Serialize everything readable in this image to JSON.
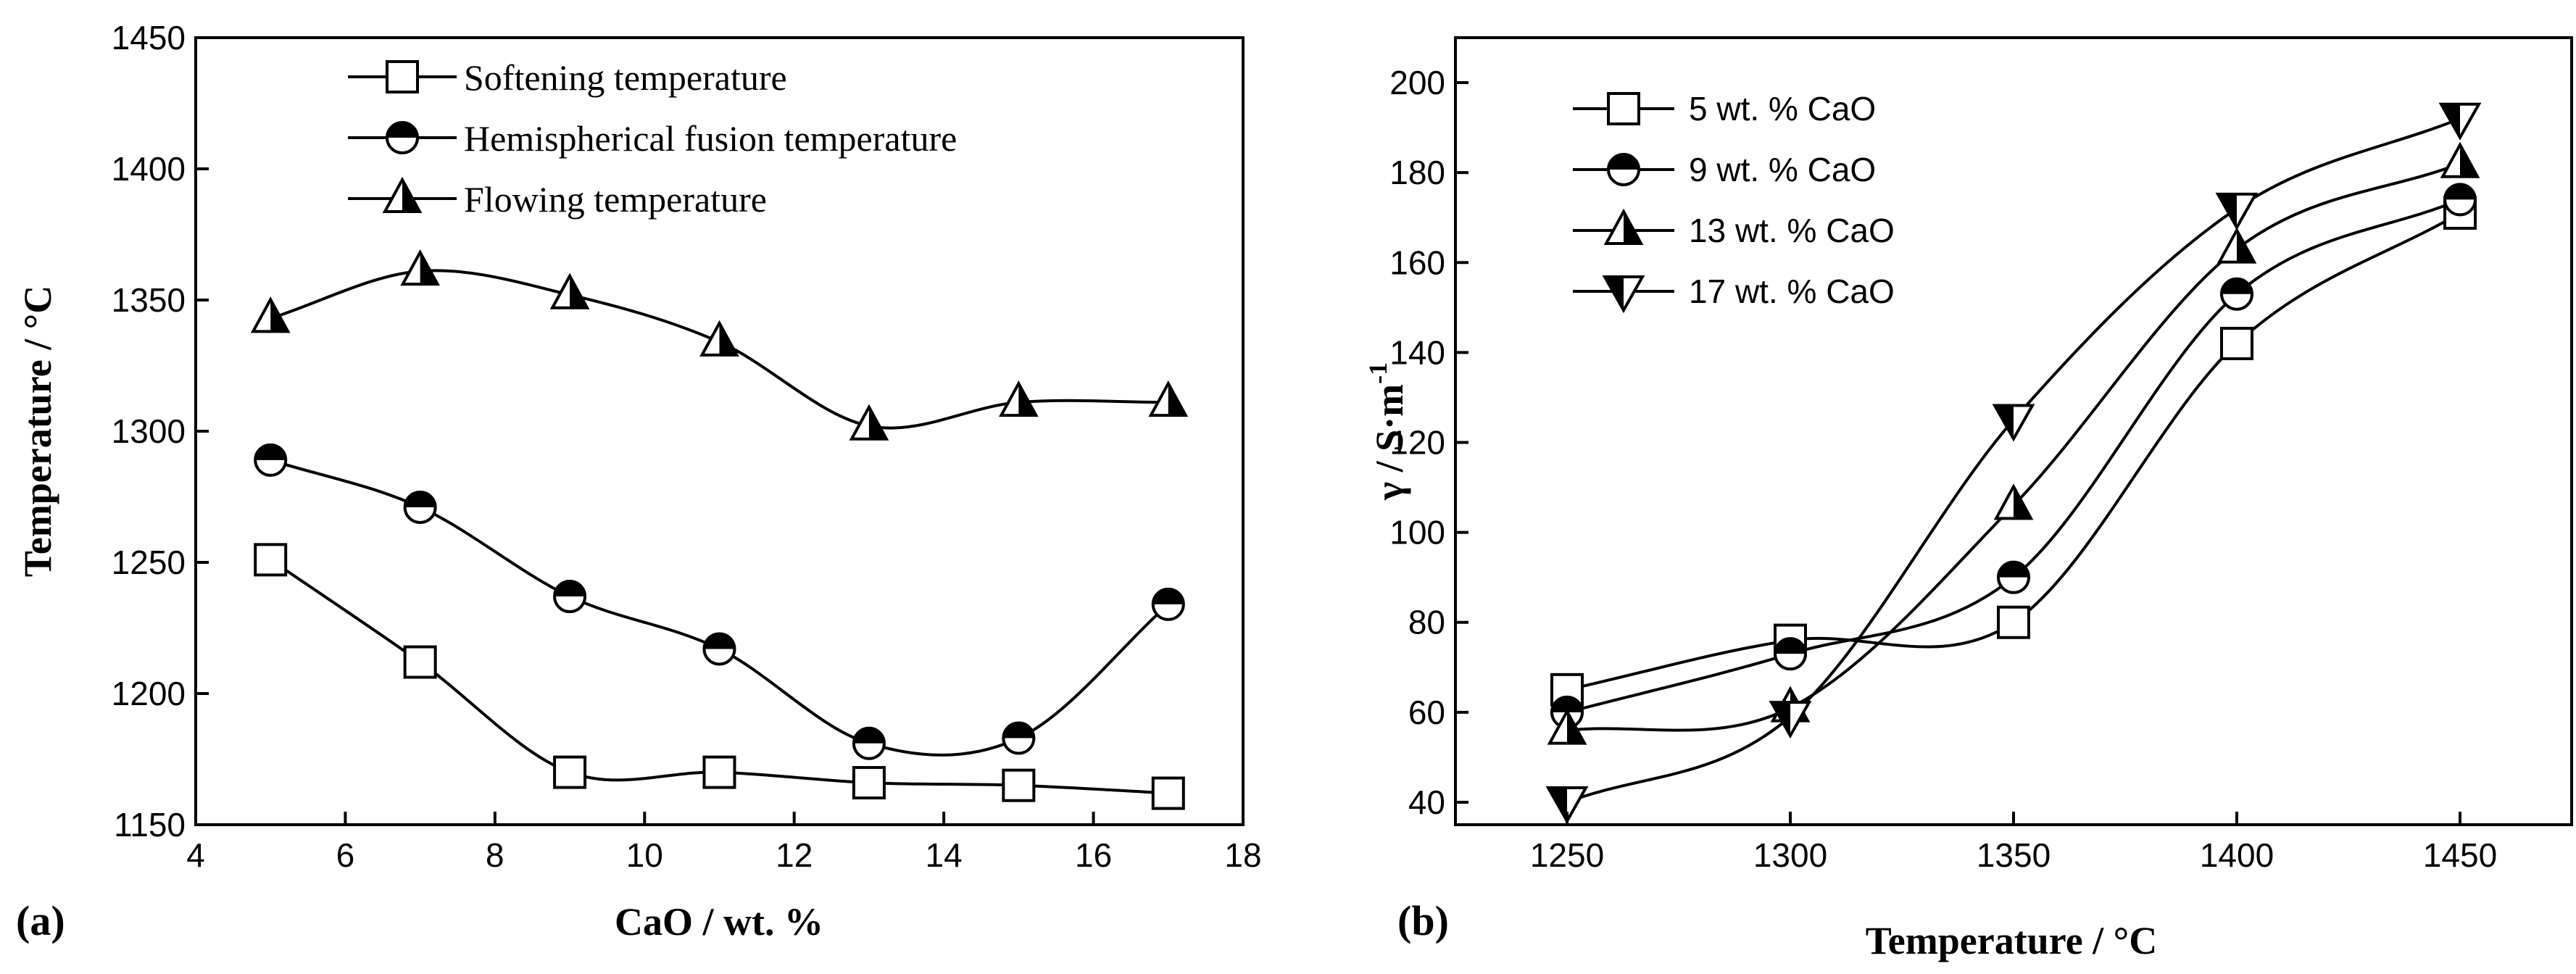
{
  "figure": {
    "panel_labels": [
      "(a)",
      "(b)"
    ]
  },
  "chart_data": [
    {
      "type": "line",
      "panel": "(a)",
      "title": "",
      "xlabel": "CaO / wt. %",
      "ylabel": "Temperature / °C",
      "xlim": [
        4,
        18
      ],
      "ylim": [
        1150,
        1450
      ],
      "xticks": [
        4,
        6,
        8,
        10,
        12,
        14,
        16,
        18
      ],
      "yticks": [
        1150,
        1200,
        1250,
        1300,
        1350,
        1400,
        1450
      ],
      "x": [
        5,
        7,
        9,
        11,
        13,
        15,
        17
      ],
      "legend_position": "top-center",
      "grid": false,
      "series": [
        {
          "name": "Softening temperature",
          "marker": "square-open",
          "values": [
            1251,
            1212,
            1170,
            1170,
            1166,
            1165,
            1162
          ]
        },
        {
          "name": "Hemispherical fusion temperature",
          "marker": "circle-half",
          "values": [
            1289,
            1271,
            1237,
            1217,
            1181,
            1183,
            1234
          ]
        },
        {
          "name": "Flowing temperature",
          "marker": "triangle-up-half",
          "values": [
            1343,
            1361,
            1352,
            1334,
            1302,
            1311,
            1311
          ]
        }
      ]
    },
    {
      "type": "line",
      "panel": "(b)",
      "title": "",
      "xlabel": "Temperature / °C",
      "ylabel": "γ / S·m",
      "ylabel_superscript": "-1",
      "xlim": [
        1225,
        1475
      ],
      "ylim": [
        35,
        210
      ],
      "xticks": [
        1250,
        1300,
        1350,
        1400,
        1450
      ],
      "yticks": [
        40,
        60,
        80,
        100,
        120,
        140,
        160,
        180,
        200
      ],
      "x": [
        1250,
        1300,
        1350,
        1400,
        1450
      ],
      "legend_position": "top-left",
      "grid": false,
      "series": [
        {
          "name": "5 wt. % CaO",
          "marker": "square-open",
          "values": [
            65,
            76,
            80,
            142,
            171
          ]
        },
        {
          "name": "9 wt. % CaO",
          "marker": "circle-half",
          "values": [
            60,
            73,
            90,
            153,
            174
          ]
        },
        {
          "name": "13 wt. % CaO",
          "marker": "triangle-up-half",
          "values": [
            56,
            61,
            106,
            163,
            182
          ]
        },
        {
          "name": "17 wt. % CaO",
          "marker": "triangle-down-half",
          "values": [
            40,
            59,
            125,
            172,
            192
          ]
        }
      ]
    }
  ]
}
